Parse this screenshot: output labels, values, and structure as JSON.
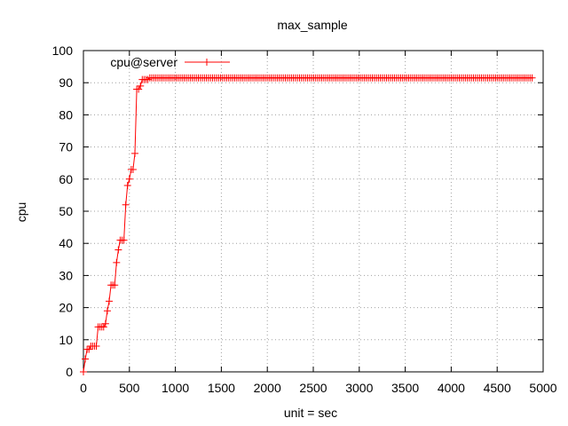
{
  "chart_data": {
    "type": "line",
    "title": "max_sample",
    "xlabel": "unit = sec",
    "ylabel": "cpu",
    "xlim": [
      0,
      5000
    ],
    "ylim": [
      0,
      100
    ],
    "xticks": [
      0,
      500,
      1000,
      1500,
      2000,
      2500,
      3000,
      3500,
      4000,
      4500,
      5000
    ],
    "yticks": [
      0,
      10,
      20,
      30,
      40,
      50,
      60,
      70,
      80,
      90,
      100
    ],
    "grid": true,
    "legend_position": "top-left",
    "colors": {
      "series": "#ff0000",
      "grid": "#a0a0a0",
      "axis": "#000000"
    },
    "series": [
      {
        "name": "cpu@server",
        "marker": "plus",
        "x": [
          0,
          20,
          40,
          60,
          80,
          100,
          120,
          140,
          160,
          180,
          200,
          220,
          240,
          260,
          280,
          300,
          320,
          340,
          360,
          380,
          400,
          420,
          440,
          460,
          480,
          500,
          520,
          540,
          560,
          580,
          600,
          620,
          640,
          660,
          680,
          700
        ],
        "y": [
          0,
          4,
          7,
          7,
          8,
          8,
          8,
          8,
          14,
          14,
          14,
          14,
          15,
          19,
          22,
          27,
          27,
          27,
          34,
          38,
          41,
          41,
          41,
          52,
          58,
          60,
          63,
          63,
          68,
          88,
          88,
          89,
          91,
          91,
          91,
          91
        ],
        "plateau": {
          "x_start": 700,
          "x_end": 4880,
          "step": 22,
          "y": 91.5
        }
      }
    ]
  }
}
